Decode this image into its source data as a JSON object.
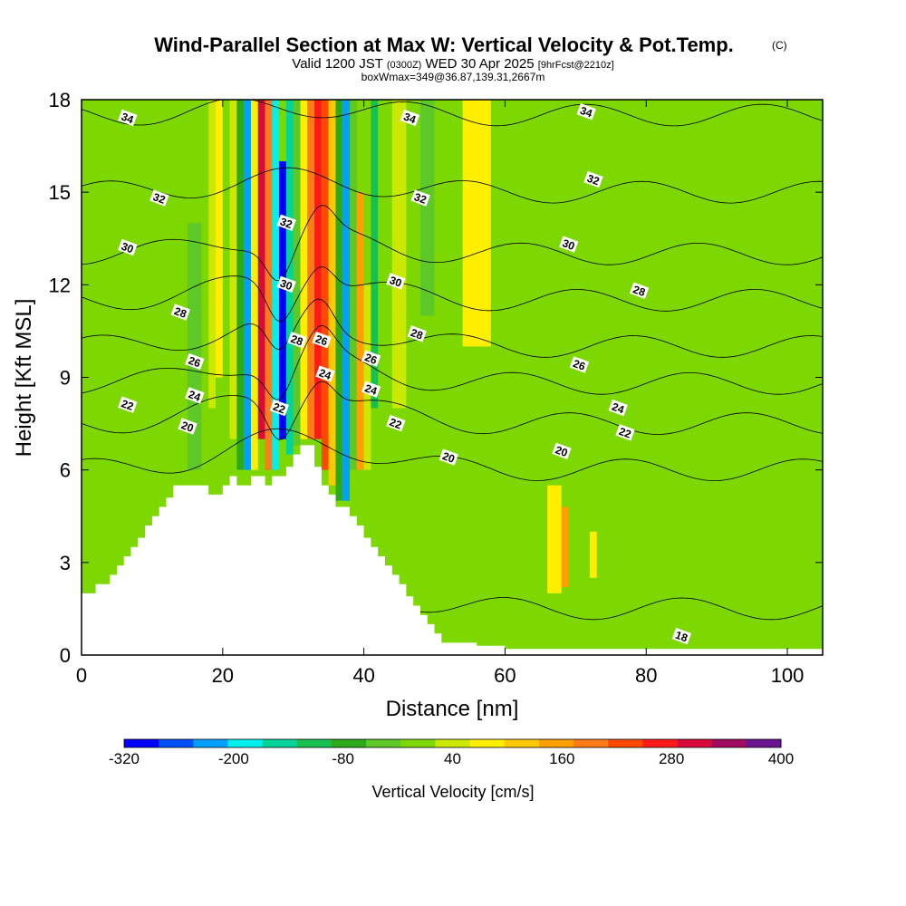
{
  "chart_data": {
    "type": "heatmap",
    "title": "Wind-Parallel Section at Max W: Vertical Velocity & Pot.Temp.",
    "title_suffix": "(C)",
    "subtitle_parts": [
      "Valid 1200 JST",
      "(0300Z)",
      "WED 30 Apr 2025",
      "[9hrFcst@2210z]"
    ],
    "subtitle2": "boxWmax=349@36.87,139.31,2667m",
    "xlabel": "Distance [nm]",
    "ylabel": "Height [Kft MSL]",
    "xlim": [
      0,
      105
    ],
    "ylim": [
      0,
      18
    ],
    "xticks": [
      0,
      20,
      40,
      60,
      80,
      100
    ],
    "yticks": [
      0,
      3,
      6,
      9,
      12,
      15,
      18
    ],
    "colorbar": {
      "label": "Vertical Velocity [cm/s]",
      "ticks": [
        -320,
        -200,
        -80,
        40,
        160,
        280,
        400
      ],
      "levels": [
        -320,
        -280,
        -240,
        -200,
        -160,
        -120,
        -80,
        -40,
        0,
        40,
        80,
        120,
        160,
        200,
        240,
        280,
        320,
        360,
        400
      ],
      "colors": [
        "#0000ff",
        "#0050ff",
        "#00a0ff",
        "#00f0f0",
        "#00d49a",
        "#18c050",
        "#2caa1c",
        "#5ec828",
        "#7cd800",
        "#cae800",
        "#ffee00",
        "#ffc800",
        "#ffa000",
        "#ff7a18",
        "#ff4800",
        "#ff1a1a",
        "#d80c3c",
        "#a00a60",
        "#6a1490"
      ]
    },
    "terrain": [
      [
        0,
        2
      ],
      [
        2,
        2
      ],
      [
        2,
        2.3
      ],
      [
        4,
        2.3
      ],
      [
        4,
        2.6
      ],
      [
        5,
        2.6
      ],
      [
        5,
        2.9
      ],
      [
        6,
        2.9
      ],
      [
        6,
        3.2
      ],
      [
        7,
        3.2
      ],
      [
        7,
        3.5
      ],
      [
        8,
        3.5
      ],
      [
        8,
        3.8
      ],
      [
        9,
        3.8
      ],
      [
        9,
        4.2
      ],
      [
        10,
        4.2
      ],
      [
        10,
        4.5
      ],
      [
        11,
        4.5
      ],
      [
        11,
        4.8
      ],
      [
        12,
        4.8
      ],
      [
        12,
        5.1
      ],
      [
        13,
        5.1
      ],
      [
        13,
        5.5
      ],
      [
        18,
        5.5
      ],
      [
        18,
        5.2
      ],
      [
        20,
        5.2
      ],
      [
        20,
        5.5
      ],
      [
        21,
        5.5
      ],
      [
        21,
        5.8
      ],
      [
        22,
        5.8
      ],
      [
        22,
        5.5
      ],
      [
        24,
        5.5
      ],
      [
        24,
        5.8
      ],
      [
        26,
        5.8
      ],
      [
        26,
        5.5
      ],
      [
        27,
        5.5
      ],
      [
        27,
        5.8
      ],
      [
        29,
        5.8
      ],
      [
        29,
        6.1
      ],
      [
        30,
        6.1
      ],
      [
        30,
        6.5
      ],
      [
        31,
        6.5
      ],
      [
        31,
        6.8
      ],
      [
        33,
        6.8
      ],
      [
        33,
        6.1
      ],
      [
        34,
        6.1
      ],
      [
        34,
        5.5
      ],
      [
        35,
        5.5
      ],
      [
        35,
        5.2
      ],
      [
        36,
        5.2
      ],
      [
        36,
        4.8
      ],
      [
        38,
        4.8
      ],
      [
        38,
        4.5
      ],
      [
        39,
        4.5
      ],
      [
        39,
        4.2
      ],
      [
        40,
        4.2
      ],
      [
        40,
        3.8
      ],
      [
        41,
        3.8
      ],
      [
        41,
        3.5
      ],
      [
        42,
        3.5
      ],
      [
        42,
        3.2
      ],
      [
        43,
        3.2
      ],
      [
        43,
        2.9
      ],
      [
        44,
        2.9
      ],
      [
        44,
        2.6
      ],
      [
        45,
        2.6
      ],
      [
        45,
        2.3
      ],
      [
        46,
        2.3
      ],
      [
        46,
        1.9
      ],
      [
        47,
        1.9
      ],
      [
        47,
        1.6
      ],
      [
        48,
        1.6
      ],
      [
        48,
        1.3
      ],
      [
        49,
        1.3
      ],
      [
        49,
        1
      ],
      [
        50,
        1
      ],
      [
        50,
        0.7
      ],
      [
        51,
        0.7
      ],
      [
        51,
        0.4
      ],
      [
        56,
        0.4
      ],
      [
        56,
        0.3
      ],
      [
        60,
        0.3
      ],
      [
        60,
        0.2
      ],
      [
        105,
        0.2
      ]
    ],
    "w_cells": [
      {
        "x": [
          21,
          22
        ],
        "y": [
          7,
          18
        ],
        "w": 40
      },
      {
        "x": [
          22,
          23
        ],
        "y": [
          6,
          18
        ],
        "w": -80
      },
      {
        "x": [
          23,
          24
        ],
        "y": [
          6,
          18
        ],
        "w": -240
      },
      {
        "x": [
          24,
          25
        ],
        "y": [
          6,
          18
        ],
        "w": 100
      },
      {
        "x": [
          25,
          26
        ],
        "y": [
          7,
          18
        ],
        "w": 320
      },
      {
        "x": [
          26,
          27
        ],
        "y": [
          6,
          18
        ],
        "w": 200
      },
      {
        "x": [
          27,
          28
        ],
        "y": [
          6,
          18
        ],
        "w": -200
      },
      {
        "x": [
          28,
          29
        ],
        "y": [
          7,
          16
        ],
        "w": -300
      },
      {
        "x": [
          29,
          30
        ],
        "y": [
          6.5,
          18
        ],
        "w": -160
      },
      {
        "x": [
          30,
          31
        ],
        "y": [
          6.8,
          18
        ],
        "w": -40
      },
      {
        "x": [
          31,
          32
        ],
        "y": [
          7,
          18
        ],
        "w": 80
      },
      {
        "x": [
          32,
          33
        ],
        "y": [
          7,
          18
        ],
        "w": 200
      },
      {
        "x": [
          33,
          34
        ],
        "y": [
          7,
          18
        ],
        "w": 300
      },
      {
        "x": [
          34,
          35
        ],
        "y": [
          6,
          18
        ],
        "w": 240
      },
      {
        "x": [
          35,
          36
        ],
        "y": [
          5.5,
          18
        ],
        "w": 120
      },
      {
        "x": [
          36,
          37
        ],
        "y": [
          5,
          18
        ],
        "w": -80
      },
      {
        "x": [
          37,
          38
        ],
        "y": [
          5,
          18
        ],
        "w": -240
      },
      {
        "x": [
          38,
          39
        ],
        "y": [
          6,
          18
        ],
        "w": -40
      },
      {
        "x": [
          39,
          40
        ],
        "y": [
          6,
          15
        ],
        "w": 160
      },
      {
        "x": [
          40,
          41
        ],
        "y": [
          6,
          12
        ],
        "w": 40
      },
      {
        "x": [
          41,
          42
        ],
        "y": [
          8,
          18
        ],
        "w": -120
      },
      {
        "x": [
          15,
          17
        ],
        "y": [
          6,
          14
        ],
        "w": -40
      },
      {
        "x": [
          18,
          19
        ],
        "y": [
          8,
          18
        ],
        "w": 40
      },
      {
        "x": [
          19,
          20
        ],
        "y": [
          9,
          18
        ],
        "w": 80
      },
      {
        "x": [
          44,
          46
        ],
        "y": [
          8,
          18
        ],
        "w": 40
      },
      {
        "x": [
          48,
          50
        ],
        "y": [
          11,
          18
        ],
        "w": -40
      },
      {
        "x": [
          54,
          58
        ],
        "y": [
          10,
          18
        ],
        "w": 80
      },
      {
        "x": [
          66,
          68
        ],
        "y": [
          2,
          5.5
        ],
        "w": 80
      },
      {
        "x": [
          68,
          69
        ],
        "y": [
          2.2,
          4.8
        ],
        "w": 160
      },
      {
        "x": [
          72,
          73
        ],
        "y": [
          2.5,
          4
        ],
        "w": 80
      }
    ],
    "theta_levels": [
      18,
      20,
      22,
      24,
      26,
      28,
      30,
      32,
      34
    ],
    "contour_labels": [
      {
        "t": "34",
        "x": 6.5,
        "y": 17.4
      },
      {
        "t": "34",
        "x": 46.5,
        "y": 17.4
      },
      {
        "t": "34",
        "x": 71.5,
        "y": 17.6
      },
      {
        "t": "32",
        "x": 11,
        "y": 14.8
      },
      {
        "t": "32",
        "x": 29,
        "y": 14
      },
      {
        "t": "32",
        "x": 48,
        "y": 14.8
      },
      {
        "t": "32",
        "x": 72.5,
        "y": 15.4
      },
      {
        "t": "30",
        "x": 6.5,
        "y": 13.2
      },
      {
        "t": "30",
        "x": 29,
        "y": 12
      },
      {
        "t": "30",
        "x": 44.5,
        "y": 12.1
      },
      {
        "t": "30",
        "x": 69,
        "y": 13.3
      },
      {
        "t": "28",
        "x": 14,
        "y": 11.1
      },
      {
        "t": "28",
        "x": 30.5,
        "y": 10.2
      },
      {
        "t": "26",
        "x": 34,
        "y": 10.2
      },
      {
        "t": "28",
        "x": 47.5,
        "y": 10.4
      },
      {
        "t": "28",
        "x": 79,
        "y": 11.8
      },
      {
        "t": "26",
        "x": 16,
        "y": 9.5
      },
      {
        "t": "26",
        "x": 41,
        "y": 9.6
      },
      {
        "t": "26",
        "x": 70.5,
        "y": 9.4
      },
      {
        "t": "24",
        "x": 16,
        "y": 8.4
      },
      {
        "t": "24",
        "x": 34.5,
        "y": 9.1
      },
      {
        "t": "24",
        "x": 41,
        "y": 8.6
      },
      {
        "t": "24",
        "x": 76,
        "y": 8
      },
      {
        "t": "22",
        "x": 6.5,
        "y": 8.1
      },
      {
        "t": "22",
        "x": 28,
        "y": 8
      },
      {
        "t": "22",
        "x": 44.5,
        "y": 7.5
      },
      {
        "t": "22",
        "x": 77,
        "y": 7.2
      },
      {
        "t": "20",
        "x": 15,
        "y": 7.4
      },
      {
        "t": "20",
        "x": 52,
        "y": 6.4
      },
      {
        "t": "20",
        "x": 68,
        "y": 6.6
      },
      {
        "t": "18",
        "x": 85,
        "y": 0.6
      }
    ]
  }
}
